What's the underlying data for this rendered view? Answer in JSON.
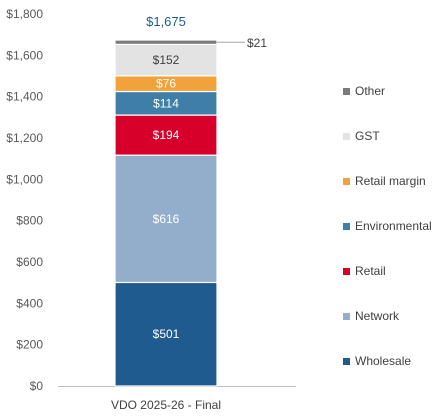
{
  "chart_data": {
    "type": "bar",
    "stacked": true,
    "categories": [
      "VDO 2025-26 - Final"
    ],
    "series": [
      {
        "name": "Wholesale",
        "values": [
          501
        ],
        "color": "#1F5B8F",
        "label": "$501"
      },
      {
        "name": "Network",
        "values": [
          616
        ],
        "color": "#93AECA",
        "label": "$616"
      },
      {
        "name": "Retail",
        "values": [
          194
        ],
        "color": "#D6002A",
        "label": "$194"
      },
      {
        "name": "Environmental",
        "values": [
          114
        ],
        "color": "#3F7EA6",
        "label": "$114"
      },
      {
        "name": "Retail margin",
        "values": [
          76
        ],
        "color": "#F2A23A",
        "label": "$76"
      },
      {
        "name": "GST",
        "values": [
          152
        ],
        "color": "#E3E3E3",
        "label": "$152"
      },
      {
        "name": "Other",
        "values": [
          21
        ],
        "color": "#7A7A7A",
        "label": "$21"
      }
    ],
    "total_label": "$1,675",
    "ylim": [
      0,
      1800
    ],
    "yticks": [
      0,
      200,
      400,
      600,
      800,
      1000,
      1200,
      1400,
      1600,
      1800
    ],
    "ytick_labels": [
      "$0",
      "$200",
      "$400",
      "$600",
      "$800",
      "$1,000",
      "$1,200",
      "$1,400",
      "$1,600",
      "$1,800"
    ],
    "legend_position": "right",
    "legend_order": [
      "Other",
      "GST",
      "Retail margin",
      "Environmental",
      "Retail",
      "Network",
      "Wholesale"
    ],
    "grid": false,
    "total_label_color": "#1F5B8F"
  }
}
